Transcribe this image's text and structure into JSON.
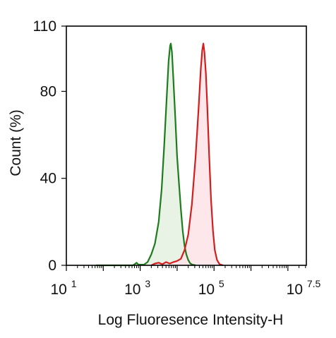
{
  "chart_data": {
    "type": "area",
    "title": "",
    "xlabel": "Log Fluoresence Intensity-H",
    "ylabel": "Count  (%)",
    "x_scale": "log",
    "xlim": [
      1,
      7.5
    ],
    "ylim": [
      0,
      110
    ],
    "x_ticks": [
      {
        "base": "10",
        "exp": "1",
        "value": 1
      },
      {
        "base": "10",
        "exp": "3",
        "value": 3
      },
      {
        "base": "10",
        "exp": "5",
        "value": 5
      },
      {
        "base": "10",
        "exp": "7.5",
        "value": 7.5
      }
    ],
    "y_ticks": [
      {
        "label": "0",
        "value": 0
      },
      {
        "label": "40",
        "value": 40
      },
      {
        "label": "80",
        "value": 80
      },
      {
        "label": "110",
        "value": 110
      }
    ],
    "grid": false,
    "legend": "none",
    "series": [
      {
        "color": "#1e7b1e",
        "fill": "#e6f2e2",
        "points": [
          [
            1.8,
            0
          ],
          [
            2.8,
            0
          ],
          [
            2.85,
            0.5
          ],
          [
            2.9,
            1.2
          ],
          [
            2.95,
            0.4
          ],
          [
            3.1,
            0.3
          ],
          [
            3.2,
            1.5
          ],
          [
            3.3,
            5
          ],
          [
            3.4,
            10
          ],
          [
            3.5,
            20
          ],
          [
            3.58,
            35
          ],
          [
            3.65,
            55
          ],
          [
            3.72,
            78
          ],
          [
            3.77,
            94
          ],
          [
            3.81,
            101
          ],
          [
            3.83,
            102
          ],
          [
            3.86,
            98
          ],
          [
            3.9,
            85
          ],
          [
            3.95,
            68
          ],
          [
            4.0,
            50
          ],
          [
            4.05,
            38
          ],
          [
            4.1,
            26
          ],
          [
            4.15,
            16
          ],
          [
            4.2,
            9
          ],
          [
            4.25,
            5
          ],
          [
            4.3,
            2.5
          ],
          [
            4.35,
            1
          ],
          [
            4.4,
            0.4
          ],
          [
            4.5,
            0
          ]
        ]
      },
      {
        "color": "#d11f1f",
        "fill": "#fde4e8",
        "points": [
          [
            3.3,
            0
          ],
          [
            3.4,
            0.8
          ],
          [
            3.5,
            1.2
          ],
          [
            3.6,
            0.5
          ],
          [
            3.7,
            1.5
          ],
          [
            3.8,
            0.8
          ],
          [
            3.9,
            1.5
          ],
          [
            4.0,
            2.0
          ],
          [
            4.1,
            3
          ],
          [
            4.2,
            7
          ],
          [
            4.3,
            14
          ],
          [
            4.4,
            28
          ],
          [
            4.5,
            50
          ],
          [
            4.58,
            72
          ],
          [
            4.64,
            90
          ],
          [
            4.68,
            99
          ],
          [
            4.71,
            102
          ],
          [
            4.74,
            98
          ],
          [
            4.78,
            88
          ],
          [
            4.82,
            72
          ],
          [
            4.87,
            50
          ],
          [
            4.92,
            30
          ],
          [
            4.97,
            16
          ],
          [
            5.02,
            7
          ],
          [
            5.08,
            2.5
          ],
          [
            5.15,
            0.5
          ],
          [
            5.25,
            0
          ]
        ]
      }
    ]
  }
}
